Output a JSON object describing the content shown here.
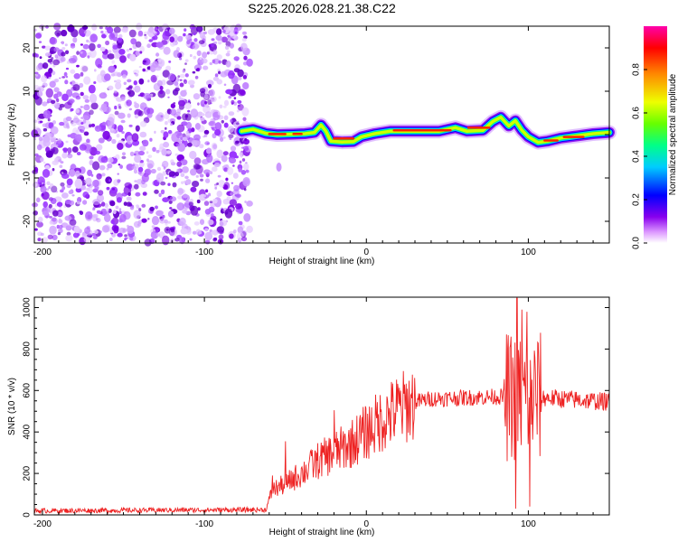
{
  "title": "S225.2026.028.21.38.C22",
  "chart_data": [
    {
      "type": "heatmap",
      "xlabel": "Height of straight line (km)",
      "ylabel": "Frequency (Hz)",
      "xlim": [
        -205,
        150
      ],
      "ylim": [
        -25,
        25
      ],
      "xticks": [
        -200,
        -100,
        0,
        100
      ],
      "yticks": [
        -20,
        -10,
        0,
        10,
        20
      ],
      "colorbar": {
        "label": "Normalized spectral amplitude",
        "range": [
          0,
          1
        ],
        "ticks": [
          "0.0",
          "0.2",
          "0.4",
          "0.6",
          "0.8"
        ],
        "colors": [
          "#ffffff",
          "#cc99ff",
          "#8800ee",
          "#0000ff",
          "#00ccff",
          "#00ff66",
          "#aaff00",
          "#ffee00",
          "#ff8800",
          "#ff0000",
          "#ff00aa"
        ]
      },
      "noise_region_x": [
        -205,
        -72
      ],
      "ridge": [
        {
          "x": -77,
          "y": 0.8
        },
        {
          "x": -70,
          "y": 1.2
        },
        {
          "x": -62,
          "y": 0.3
        },
        {
          "x": -55,
          "y": 0.0
        },
        {
          "x": -45,
          "y": 0.1
        },
        {
          "x": -38,
          "y": 0.2
        },
        {
          "x": -32,
          "y": 0.5
        },
        {
          "x": -28,
          "y": 2.2
        },
        {
          "x": -25,
          "y": 0.8
        },
        {
          "x": -22,
          "y": -1.5
        },
        {
          "x": -15,
          "y": -1.7
        },
        {
          "x": -8,
          "y": -1.6
        },
        {
          "x": -3,
          "y": -0.5
        },
        {
          "x": 5,
          "y": 0.2
        },
        {
          "x": 15,
          "y": 0.8
        },
        {
          "x": 30,
          "y": 0.8
        },
        {
          "x": 45,
          "y": 0.8
        },
        {
          "x": 55,
          "y": 1.6
        },
        {
          "x": 62,
          "y": 0.8
        },
        {
          "x": 72,
          "y": 1.0
        },
        {
          "x": 78,
          "y": 3.0
        },
        {
          "x": 83,
          "y": 4.0
        },
        {
          "x": 88,
          "y": 2.0
        },
        {
          "x": 92,
          "y": 3.2
        },
        {
          "x": 96,
          "y": 1.0
        },
        {
          "x": 100,
          "y": -0.5
        },
        {
          "x": 106,
          "y": -1.8
        },
        {
          "x": 112,
          "y": -1.5
        },
        {
          "x": 120,
          "y": -0.8
        },
        {
          "x": 130,
          "y": -0.3
        },
        {
          "x": 140,
          "y": 0.2
        },
        {
          "x": 150,
          "y": 0.5
        }
      ]
    },
    {
      "type": "line",
      "xlabel": "Height of straight line (km)",
      "ylabel": "SNR (10 * v/v)",
      "xlim": [
        -205,
        150
      ],
      "ylim": [
        0,
        1050
      ],
      "xticks": [
        -200,
        -100,
        0,
        100
      ],
      "yticks": [
        0,
        200,
        400,
        600,
        800,
        1000
      ],
      "series": [
        {
          "color": "#ee2222",
          "envelope": [
            {
              "x": -205,
              "y": 20
            },
            {
              "x": -62,
              "y": 25
            },
            {
              "x": -58,
              "y": 120
            },
            {
              "x": -50,
              "y": 150
            },
            {
              "x": -40,
              "y": 200
            },
            {
              "x": -30,
              "y": 260
            },
            {
              "x": -20,
              "y": 300
            },
            {
              "x": -10,
              "y": 340
            },
            {
              "x": 0,
              "y": 400
            },
            {
              "x": 10,
              "y": 460
            },
            {
              "x": 20,
              "y": 510
            },
            {
              "x": 30,
              "y": 545
            },
            {
              "x": 40,
              "y": 560
            },
            {
              "x": 60,
              "y": 565
            },
            {
              "x": 80,
              "y": 570
            },
            {
              "x": 100,
              "y": 570
            },
            {
              "x": 120,
              "y": 560
            },
            {
              "x": 150,
              "y": 545
            }
          ],
          "spikes": [
            {
              "x": -58,
              "y": 190
            },
            {
              "x": -50,
              "y": 355
            },
            {
              "x": -48,
              "y": 150
            },
            {
              "x": -20,
              "y": 505
            },
            {
              "x": -35,
              "y": 280
            },
            {
              "x": 89,
              "y": 820
            },
            {
              "x": 92,
              "y": 30
            },
            {
              "x": 93,
              "y": 1045
            },
            {
              "x": 96,
              "y": 990
            },
            {
              "x": 99,
              "y": 980
            },
            {
              "x": 101,
              "y": 40
            },
            {
              "x": 104,
              "y": 760
            }
          ]
        }
      ]
    }
  ]
}
